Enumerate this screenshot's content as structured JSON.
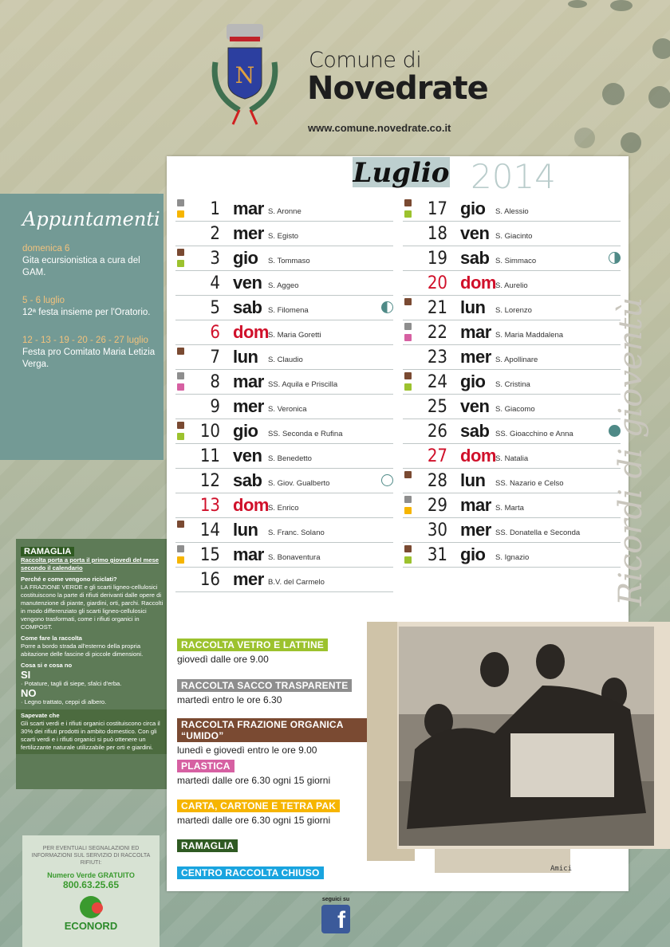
{
  "header": {
    "line1": "Comune di",
    "line2": "Novedrate",
    "url": "www.comune.novedrate.co.it",
    "crest_letter": "N"
  },
  "calendar": {
    "month": "Luglio",
    "year": "2014",
    "colors": {
      "gray": "#8e8e8e",
      "orange": "#f6b500",
      "brown": "#7a4a32",
      "green": "#9cc22e",
      "pink": "#d660a2",
      "darkgreen": "#2f5a22",
      "cyan": "#19a4df",
      "sunday": "#d0102a"
    },
    "days": [
      {
        "n": "1",
        "dow": "mar",
        "saint": "S. Aronne",
        "markers": [
          "gray",
          "orange"
        ]
      },
      {
        "n": "2",
        "dow": "mer",
        "saint": "S. Egisto",
        "markers": []
      },
      {
        "n": "3",
        "dow": "gio",
        "saint": "S. Tommaso",
        "markers": [
          "brown",
          "green"
        ]
      },
      {
        "n": "4",
        "dow": "ven",
        "saint": "S. Aggeo",
        "markers": []
      },
      {
        "n": "5",
        "dow": "sab",
        "saint": "S. Filomena",
        "markers": [],
        "moon": "first-quarter"
      },
      {
        "n": "6",
        "dow": "dom",
        "saint": "S. Maria Goretti",
        "markers": [],
        "sunday": true
      },
      {
        "n": "7",
        "dow": "lun",
        "saint": "S. Claudio",
        "markers": [
          "brown"
        ]
      },
      {
        "n": "8",
        "dow": "mar",
        "saint": "SS. Aquila e Priscilla",
        "markers": [
          "gray",
          "pink"
        ]
      },
      {
        "n": "9",
        "dow": "mer",
        "saint": "S. Veronica",
        "markers": []
      },
      {
        "n": "10",
        "dow": "gio",
        "saint": "SS. Seconda e Rufina",
        "markers": [
          "brown",
          "green"
        ]
      },
      {
        "n": "11",
        "dow": "ven",
        "saint": "S. Benedetto",
        "markers": []
      },
      {
        "n": "12",
        "dow": "sab",
        "saint": "S. Giov. Gualberto",
        "markers": [],
        "moon": "full"
      },
      {
        "n": "13",
        "dow": "dom",
        "saint": "S. Enrico",
        "markers": [],
        "sunday": true
      },
      {
        "n": "14",
        "dow": "lun",
        "saint": "S. Franc. Solano",
        "markers": [
          "brown"
        ]
      },
      {
        "n": "15",
        "dow": "mar",
        "saint": "S. Bonaventura",
        "markers": [
          "gray",
          "orange"
        ]
      },
      {
        "n": "16",
        "dow": "mer",
        "saint": "B.V. del Carmelo",
        "markers": []
      },
      {
        "n": "17",
        "dow": "gio",
        "saint": "S. Alessio",
        "markers": [
          "brown",
          "green"
        ]
      },
      {
        "n": "18",
        "dow": "ven",
        "saint": "S. Giacinto",
        "markers": []
      },
      {
        "n": "19",
        "dow": "sab",
        "saint": "S. Simmaco",
        "markers": [],
        "moon": "last-quarter"
      },
      {
        "n": "20",
        "dow": "dom",
        "saint": "S. Aurelio",
        "markers": [],
        "sunday": true
      },
      {
        "n": "21",
        "dow": "lun",
        "saint": "S. Lorenzo",
        "markers": [
          "brown"
        ]
      },
      {
        "n": "22",
        "dow": "mar",
        "saint": "S. Maria Maddalena",
        "markers": [
          "gray",
          "pink"
        ]
      },
      {
        "n": "23",
        "dow": "mer",
        "saint": "S. Apollinare",
        "markers": []
      },
      {
        "n": "24",
        "dow": "gio",
        "saint": "S. Cristina",
        "markers": [
          "brown",
          "green"
        ]
      },
      {
        "n": "25",
        "dow": "ven",
        "saint": "S. Giacomo",
        "markers": []
      },
      {
        "n": "26",
        "dow": "sab",
        "saint": "SS. Gioacchino e Anna",
        "markers": [],
        "moon": "new"
      },
      {
        "n": "27",
        "dow": "dom",
        "saint": "S. Natalia",
        "markers": [],
        "sunday": true
      },
      {
        "n": "28",
        "dow": "lun",
        "saint": "SS. Nazario e Celso",
        "markers": [
          "brown"
        ]
      },
      {
        "n": "29",
        "dow": "mar",
        "saint": "S. Marta",
        "markers": [
          "gray",
          "orange"
        ]
      },
      {
        "n": "30",
        "dow": "mer",
        "saint": "SS. Donatella e Seconda",
        "markers": []
      },
      {
        "n": "31",
        "dow": "gio",
        "saint": "S. Ignazio",
        "markers": [
          "brown",
          "green"
        ]
      }
    ]
  },
  "appuntamenti": {
    "title": "Appuntamenti",
    "events": [
      {
        "date": "domenica 6",
        "text": "Gita ecursionistica a cura del GAM."
      },
      {
        "date": "5 - 6 luglio",
        "text": "12ª festa insieme per l'Oratorio."
      },
      {
        "date": "12 - 13 - 19 - 20 - 26 - 27 luglio",
        "text": "Festa pro Comitato Maria Letizia Verga."
      }
    ]
  },
  "ramaglia": {
    "tag": "RAMAGLIA",
    "subtitle": "Raccolta porta a porta il primo giovedì del mese secondo il calendario",
    "q1": "Perché e come vengono riciclati?",
    "a1": "LA FRAZIONE VERDE e gli scarti ligneo-cellulosici costituiscono la parte di rifiuti derivanti dalle opere di manutenzione di piante, giardini, orti, parchi. Raccolti in modo differenziato gli scarti ligneo-cellulosici vengono trasformati, come i rifiuti organici in COMPOST.",
    "q2": "Come fare la raccolta",
    "a2": "Porre a bordo strada all'esterno della propria abitazione delle fascine di piccole dimensioni.",
    "q3": "Cosa si e cosa no",
    "si": "SI",
    "si_text": "· Potature, tagli di siepe, sfalci d'erba.",
    "no": "NO",
    "no_text": "· Legno trattato, ceppi di albero.",
    "q4": "Sapevate che",
    "a4": "Gli scarti verdi e i rifiuti organici costituiscono circa il 30% dei rifiuti prodotti in ambito domestico. Con gli scarti verdi e i rifiuti organici si può ottenere un fertilizzante naturale utilizzabile per orti e giardini."
  },
  "legend": [
    {
      "label": "RACCOLTA VETRO E LATTINE",
      "desc": "giovedì dalle ore 9.00",
      "color": "green"
    },
    {
      "label": "RACCOLTA SACCO TRASPARENTE",
      "desc": "martedì entro le ore 6.30",
      "color": "gray"
    },
    {
      "label": "RACCOLTA FRAZIONE ORGANICA “UMIDO”",
      "desc": "lunedì e giovedì entro le ore 9.00",
      "color": "brown"
    },
    {
      "label": "PLASTICA",
      "desc": "martedì dalle ore 6.30 ogni 15 giorni",
      "color": "pink"
    },
    {
      "label": "CARTA, CARTONE E TETRA PAK",
      "desc": "martedì dalle ore 6.30 ogni 15 giorni",
      "color": "orange"
    },
    {
      "label": "RAMAGLIA",
      "desc": "",
      "color": "darkgreen"
    },
    {
      "label": "CENTRO RACCOLTA CHIUSO",
      "desc": "",
      "color": "cyan"
    }
  ],
  "photo": {
    "caption": "Amici",
    "vertical_text": "Ricordi di gioventù"
  },
  "info": {
    "text": "PER EVENTUALI SEGNALAZIONI ED INFORMAZIONI SUL SERVIZIO DI RACCOLTA RIFIUTI:",
    "numero_label": "Numero Verde GRATUITO",
    "phone": "800.63.25.65",
    "brand": "ECONORD"
  },
  "social": {
    "label": "seguici su",
    "icon": "facebook-icon"
  }
}
